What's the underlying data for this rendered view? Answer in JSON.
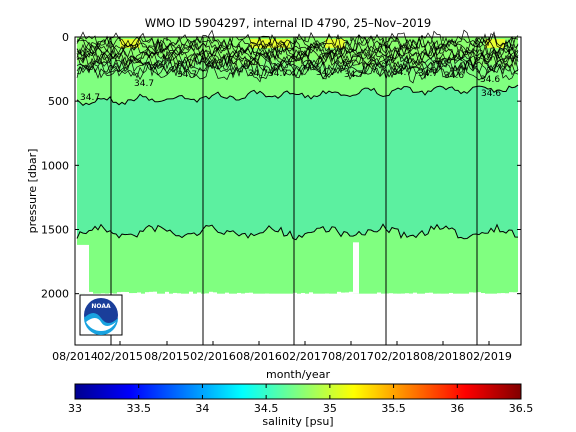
{
  "chart_data": {
    "type": "heatmap",
    "title": "WMO ID 5904297, internal ID 4790, 25–Nov–2019",
    "xlabel": "month/year",
    "ylabel": "pressure [dbar]",
    "y_axis_reversed": true,
    "ylim": [
      0,
      2400
    ],
    "x_range": [
      "2014-08",
      "2019-10"
    ],
    "x_tick_labels": [
      "08/2014",
      "02/2015",
      "08/2015",
      "02/2016",
      "08/2016",
      "02/2017",
      "08/2017",
      "02/2018",
      "08/2018",
      "02/2019"
    ],
    "y_ticks": [
      0,
      500,
      1000,
      1500,
      2000
    ],
    "colorbar": {
      "label": "salinity [psu]",
      "range": [
        33,
        36.5
      ],
      "ticks": [
        "33",
        "33.5",
        "34",
        "34.5",
        "35",
        "35.5",
        "36",
        "36.5"
      ],
      "colormap": "jet"
    },
    "contour_labels": [
      "34.7",
      "34.7",
      "34.7",
      "34.7",
      "34.7",
      "34.7",
      "34.7",
      "34.7",
      "34.7",
      "34.6",
      "34.6",
      "34.6"
    ],
    "isolines": [
      {
        "level": "upper 34.7",
        "pressure_dbar_approx": 580
      },
      {
        "level": "lower 34.7",
        "pressure_dbar_approx": 1520
      }
    ],
    "field_regions": [
      {
        "layer": "surface 0-200 dbar",
        "salinity_psu": 35.2,
        "color": "#8cff70"
      },
      {
        "layer": "200-580 dbar",
        "salinity_psu": 34.85,
        "color": "#80ff80"
      },
      {
        "layer": "580-1520 dbar",
        "salinity_psu": 34.65,
        "color": "#5cf0a0"
      },
      {
        "layer": "1520-2000 dbar",
        "salinity_psu": 34.85,
        "color": "#80ff80"
      }
    ],
    "max_profile_depth_dbar": 2000,
    "grid": false
  },
  "logo": {
    "text": "NOAA"
  }
}
